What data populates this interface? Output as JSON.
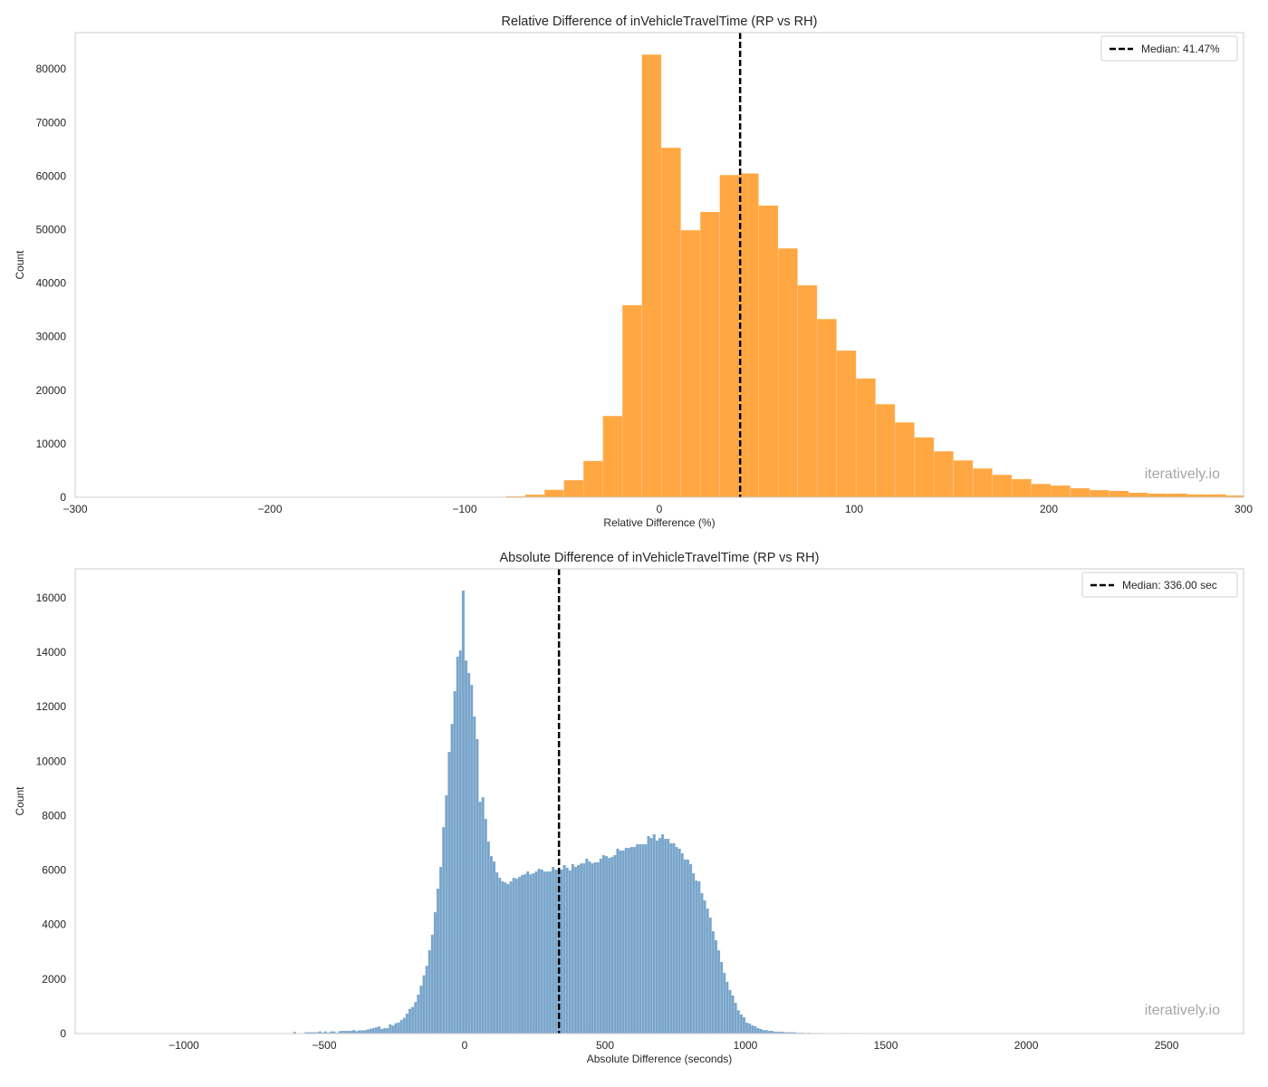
{
  "chart_data": [
    {
      "type": "bar",
      "title": "Relative Difference of inVehicleTravelTime (RP vs RH)",
      "xlabel": "Relative Difference (%)",
      "ylabel": "Count",
      "xlim": [
        -300,
        300
      ],
      "ylim": [
        0,
        86800
      ],
      "xticks": [
        "−300",
        "−200",
        "−100",
        "0",
        "100",
        "200",
        "300"
      ],
      "xtick_values": [
        -300,
        -200,
        -100,
        0,
        100,
        200,
        300
      ],
      "yticks": [
        "0",
        "10000",
        "20000",
        "30000",
        "40000",
        "50000",
        "60000",
        "70000",
        "80000"
      ],
      "ytick_values": [
        0,
        10000,
        20000,
        30000,
        40000,
        50000,
        60000,
        70000,
        80000
      ],
      "grid": false,
      "color": "#FFA843",
      "bin_start": -79,
      "bin_width": 10,
      "counts": [
        200,
        500,
        1400,
        3200,
        6800,
        15200,
        35900,
        82700,
        65300,
        49900,
        53300,
        60200,
        60500,
        54500,
        46500,
        39600,
        33300,
        27400,
        22200,
        17400,
        14000,
        11200,
        8600,
        6900,
        5400,
        4200,
        3400,
        2500,
        2200,
        1700,
        1350,
        1200,
        850,
        700,
        700,
        550,
        550,
        350
      ],
      "median": 41.47,
      "legend": {
        "label": "Median: 41.47%",
        "placement": "top-right"
      },
      "watermark": "iteratively.io"
    },
    {
      "type": "bar",
      "title": "Absolute Difference of inVehicleTravelTime (RP vs RH)",
      "xlabel": "Absolute Difference (seconds)",
      "ylabel": "Count",
      "xlim": [
        -1387,
        2774
      ],
      "ylim": [
        0,
        17060
      ],
      "xticks": [
        "−1000",
        "−500",
        "0",
        "500",
        "1000",
        "1500",
        "2000",
        "2500"
      ],
      "xtick_values": [
        -1000,
        -500,
        0,
        500,
        1000,
        1500,
        2000,
        2500
      ],
      "yticks": [
        "0",
        "2000",
        "4000",
        "6000",
        "8000",
        "10000",
        "12000",
        "14000",
        "16000"
      ],
      "ytick_values": [
        0,
        2000,
        4000,
        6000,
        8000,
        10000,
        12000,
        14000,
        16000
      ],
      "grid": false,
      "color": "#79A5CB",
      "bin_start": -610,
      "bin_width": 10,
      "counts": [
        60,
        0,
        0,
        0,
        50,
        50,
        50,
        50,
        50,
        80,
        40,
        80,
        40,
        80,
        80,
        30,
        90,
        100,
        100,
        100,
        100,
        130,
        90,
        120,
        120,
        120,
        150,
        180,
        200,
        230,
        260,
        170,
        200,
        200,
        340,
        300,
        380,
        410,
        500,
        580,
        730,
        910,
        980,
        1160,
        1430,
        1760,
        2140,
        2490,
        3060,
        3630,
        4460,
        5320,
        6120,
        7580,
        8750,
        10340,
        11370,
        12570,
        13840,
        14070,
        16260,
        13700,
        13240,
        12800,
        11640,
        10810,
        8510,
        8680,
        7880,
        7050,
        6520,
        6320,
        5920,
        5720,
        5590,
        5550,
        5490,
        5590,
        5720,
        5690,
        5750,
        5820,
        5850,
        5950,
        5850,
        5880,
        5950,
        6050,
        6020,
        5950,
        5950,
        5950,
        6120,
        6020,
        6020,
        6020,
        6190,
        6090,
        5990,
        6220,
        6120,
        6190,
        6250,
        6250,
        6420,
        6320,
        6250,
        6290,
        6290,
        6420,
        6550,
        6520,
        6450,
        6490,
        6550,
        6790,
        6720,
        6720,
        6820,
        6820,
        6850,
        6850,
        6950,
        6950,
        6950,
        6950,
        7250,
        7180,
        7320,
        7090,
        7180,
        7320,
        7150,
        7150,
        6990,
        6990,
        6850,
        6790,
        6620,
        6390,
        6390,
        6220,
        5890,
        5620,
        5590,
        5160,
        4890,
        4590,
        4260,
        3760,
        3430,
        3060,
        2630,
        2230,
        1900,
        1600,
        1400,
        1130,
        860,
        700,
        600,
        400,
        370,
        300,
        270,
        200,
        170,
        130,
        130,
        100,
        100,
        70,
        70,
        70,
        60,
        50,
        50,
        50,
        50,
        30,
        30,
        30,
        20,
        30,
        20,
        20,
        20,
        10,
        20,
        10,
        10,
        0,
        0,
        0,
        0,
        0,
        20,
        0,
        0,
        0,
        20
      ],
      "median": 336.0,
      "legend": {
        "label": "Median: 336.00 sec",
        "placement": "top-right"
      },
      "watermark": "iteratively.io"
    }
  ]
}
